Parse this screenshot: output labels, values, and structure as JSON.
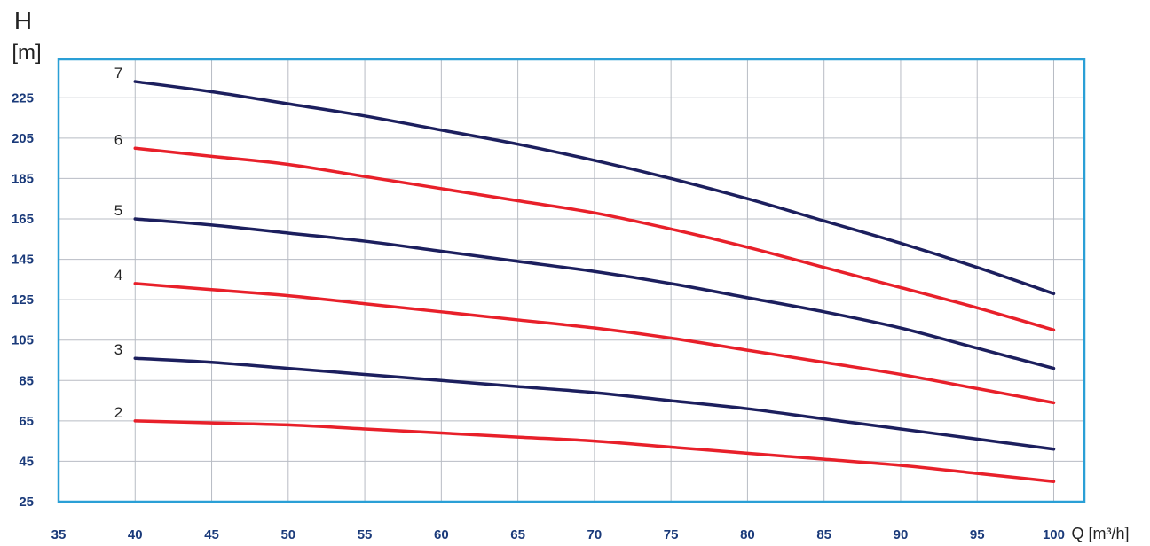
{
  "chart_data": {
    "type": "line",
    "title": "",
    "ylabel": "H",
    "yunit": "[m]",
    "xlabel": "Q [m³/h]",
    "xlim": [
      35,
      102
    ],
    "ylim": [
      25,
      244
    ],
    "xticks": [
      "35",
      "40",
      "45",
      "50",
      "55",
      "60",
      "65",
      "70",
      "75",
      "80",
      "85",
      "90",
      "95",
      "100"
    ],
    "yticks": [
      "25",
      "45",
      "65",
      "85",
      "105",
      "125",
      "145",
      "165",
      "185",
      "205",
      "225"
    ],
    "grid": true,
    "legend": "none",
    "x": [
      40,
      45,
      50,
      55,
      60,
      65,
      70,
      75,
      80,
      85,
      90,
      95,
      100
    ],
    "series": [
      {
        "name": "7",
        "color": "#1c1f5e",
        "values": [
          233,
          228,
          222,
          216,
          209,
          202,
          194,
          185,
          175,
          164,
          153,
          141,
          128
        ]
      },
      {
        "name": "6",
        "color": "#e8202a",
        "values": [
          200,
          196,
          192,
          186,
          180,
          174,
          168,
          160,
          151,
          141,
          131,
          121,
          110
        ]
      },
      {
        "name": "5",
        "color": "#1c1f5e",
        "values": [
          165,
          162,
          158,
          154,
          149,
          144,
          139,
          133,
          126,
          119,
          111,
          101,
          91
        ]
      },
      {
        "name": "4",
        "color": "#e8202a",
        "values": [
          133,
          130,
          127,
          123,
          119,
          115,
          111,
          106,
          100,
          94,
          88,
          81,
          74
        ]
      },
      {
        "name": "3",
        "color": "#1c1f5e",
        "values": [
          96,
          94,
          91,
          88,
          85,
          82,
          79,
          75,
          71,
          66,
          61,
          56,
          51
        ]
      },
      {
        "name": "2",
        "color": "#e8202a",
        "values": [
          65,
          64,
          63,
          61,
          59,
          57,
          55,
          52,
          49,
          46,
          43,
          39,
          35
        ]
      }
    ]
  }
}
